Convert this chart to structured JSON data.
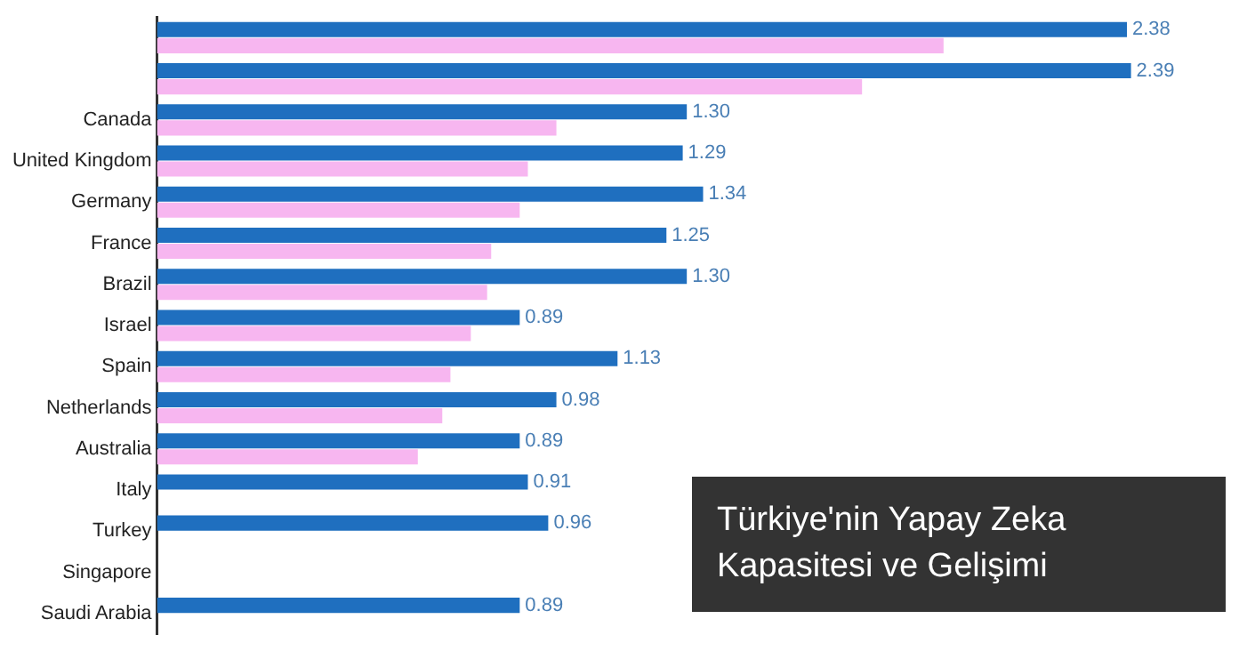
{
  "chart_data": {
    "type": "bar",
    "orientation": "horizontal",
    "title": "Türkiye'nin Yapay Zeka Kapasitesi ve Gelişimi",
    "categories": [
      null,
      null,
      "Canada",
      "United Kingdom",
      "Germany",
      "France",
      "Brazil",
      "Israel",
      "Spain",
      "Netherlands",
      "Australia",
      "Italy",
      "Turkey",
      "Singapore",
      "Saudi Arabia"
    ],
    "series": [
      {
        "color": "#1f6fbf",
        "values": [
          2.38,
          2.39,
          1.3,
          1.29,
          1.34,
          1.25,
          1.3,
          0.89,
          1.13,
          0.98,
          0.89,
          0.91,
          0.96,
          null,
          0.89
        ],
        "value_labels": [
          "2.38",
          "2.39",
          "1.30",
          "1.29",
          "1.34",
          "1.25",
          "1.30",
          "0.89",
          "1.13",
          "0.98",
          "0.89",
          "0.91",
          "0.96",
          null,
          "0.89"
        ]
      },
      {
        "color": "#f7b6f0",
        "values": [
          1.93,
          1.73,
          0.98,
          0.91,
          0.89,
          0.82,
          0.81,
          0.77,
          0.72,
          0.7,
          0.64,
          null,
          null,
          null,
          null
        ]
      }
    ],
    "tick_labels": "y",
    "grid": false,
    "legend": false
  }
}
